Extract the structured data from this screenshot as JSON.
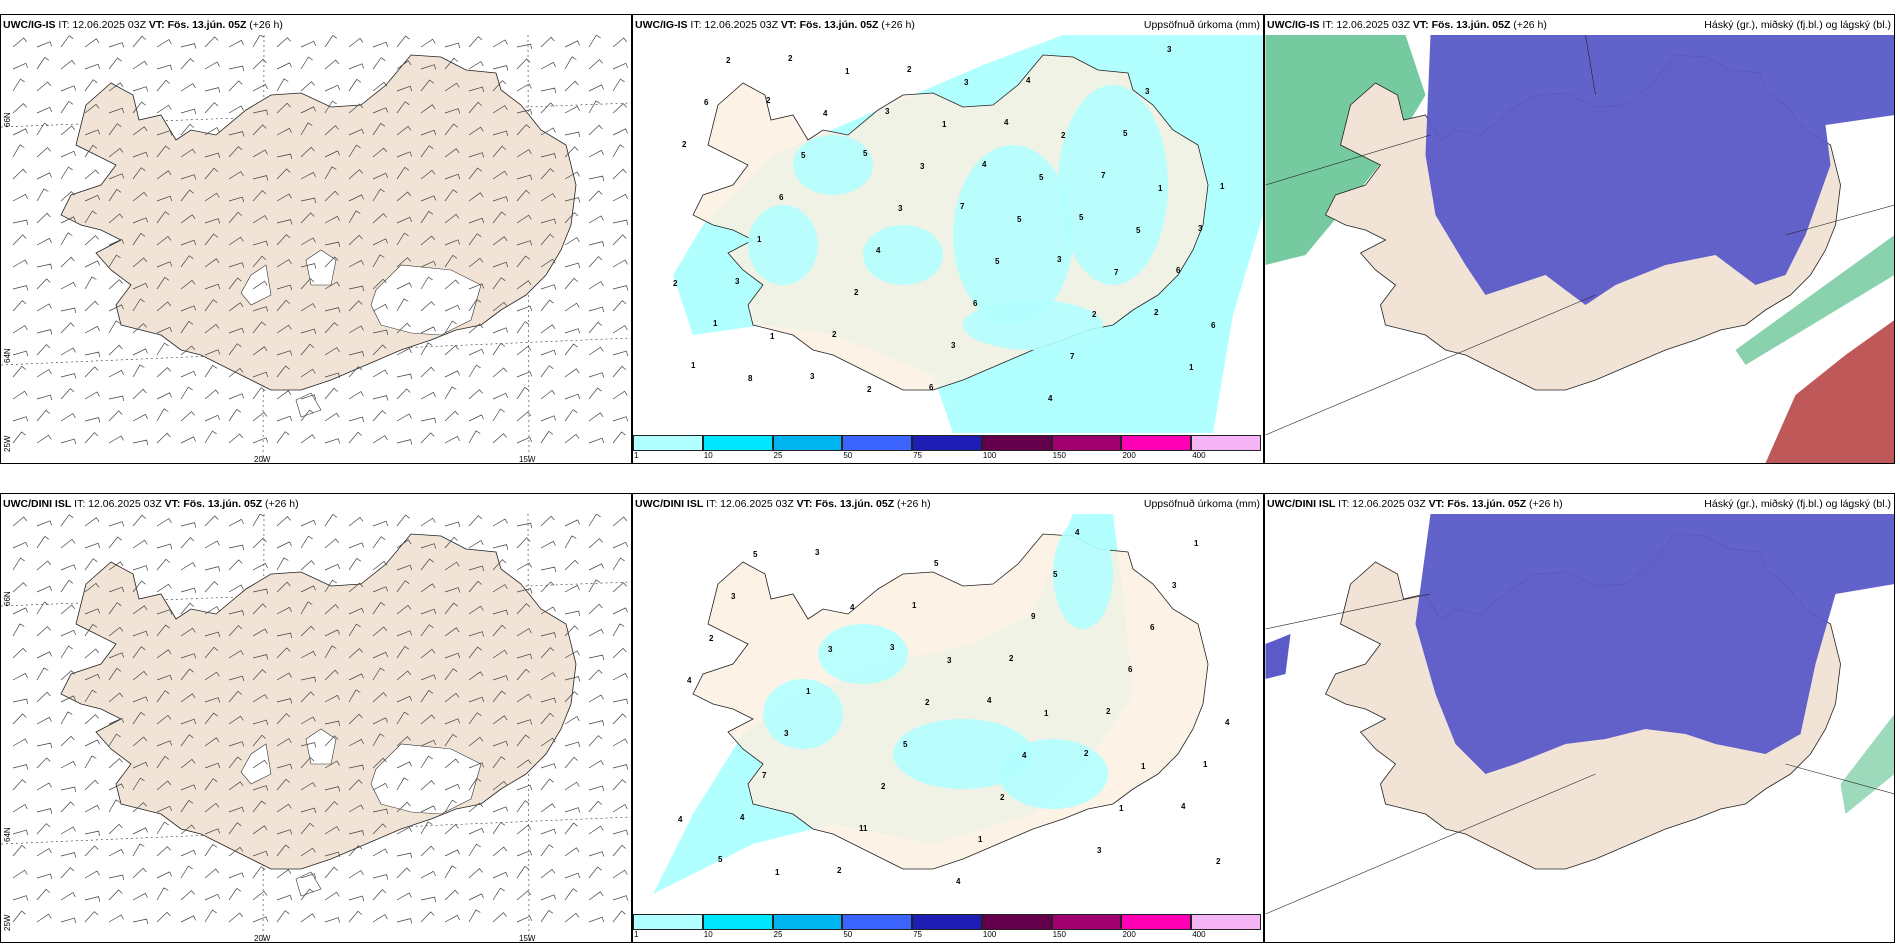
{
  "header": {
    "it_prefix": "IT: 12.06.2025 03Z",
    "vt_label": "VT: Fös. 13.jún. 05Z",
    "lead": "(+26 h)"
  },
  "rows": [
    {
      "model": "UWC/IG-IS"
    },
    {
      "model": "UWC/DINI ISL"
    }
  ],
  "panel_titles": {
    "precip": "Uppsöfnuð úrkoma (mm)",
    "cloud": "Háský (gr.), miðský (fj.bl.) og lágský (bl.)"
  },
  "axis_labels": {
    "lon_20": "20W",
    "lon_15": "15W",
    "lat_66": "66N",
    "lat_64": "64N",
    "lon_25": "25W"
  },
  "colorbar": {
    "labels": [
      "1",
      "10",
      "25",
      "50",
      "75",
      "100",
      "150",
      "200",
      "400"
    ],
    "colors": [
      "#b2ffff",
      "#00e6ff",
      "#00b4f0",
      "#3c64ff",
      "#1e1eb4",
      "#64004b",
      "#a0006e",
      "#ff00b4",
      "#f5b4f5"
    ]
  },
  "colors": {
    "land": "#f1e4d6",
    "land_precip": "#fbf0e2",
    "precip_light": "#b2ffff",
    "cloud_high": "#5a5ac8",
    "cloud_mid": "#3cb478",
    "cloud_low": "#b43c3c"
  },
  "precip_numbers_top": [
    "2",
    "5",
    "7",
    "3",
    "2",
    "1",
    "2",
    "3",
    "4",
    "5",
    "6",
    "1",
    "3",
    "2",
    "4",
    "7",
    "3",
    "3",
    "2",
    "6",
    "4",
    "5",
    "1",
    "1",
    "2",
    "3",
    "4",
    "3",
    "2",
    "6",
    "4",
    "6",
    "7",
    "3",
    "6",
    "5",
    "3",
    "5",
    "2",
    "1",
    "2",
    "4",
    "3",
    "5",
    "7",
    "6",
    "8",
    "1",
    "1",
    "5",
    "5",
    "2",
    "1",
    "2",
    "3",
    "2",
    "1"
  ],
  "precip_numbers_bottom": [
    "3",
    "4",
    "2",
    "4",
    "5",
    "3",
    "1",
    "2",
    "2",
    "1",
    "4",
    "2",
    "5",
    "9",
    "6",
    "4",
    "7",
    "11",
    "4",
    "5",
    "6",
    "4",
    "3",
    "2",
    "1",
    "4",
    "3",
    "2",
    "1",
    "5",
    "2",
    "3",
    "1",
    "3",
    "3",
    "2",
    "4",
    "1",
    "2",
    "5",
    "4",
    "3",
    "1",
    "1",
    "4",
    "1"
  ]
}
